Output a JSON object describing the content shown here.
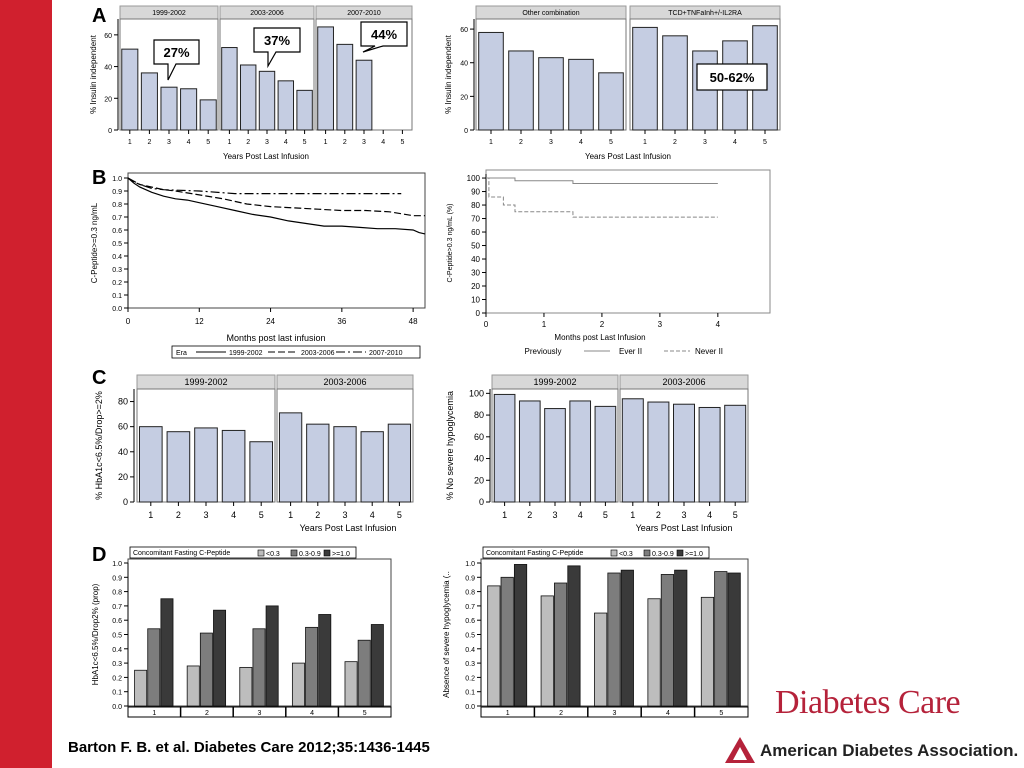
{
  "citation": "Barton F. B. et al. Diabetes Care 2012;35:1436-1445",
  "journal": "Diabetes Care",
  "association": "American Diabetes Association.",
  "colors": {
    "side_bar": "#d0202e",
    "bar_fill": "#c5cde2",
    "strip": "#d8d8d8",
    "grey_light": "#bdbdbd",
    "grey_mid": "#7d7d7d",
    "grey_dark": "#3a3a3a",
    "brand": "#b5223a"
  },
  "chart_data": [
    {
      "id": "A1",
      "panel_letter": "A",
      "type": "bar",
      "ylabel": "% Insulin independent",
      "xlabel": "Years Post Last Infusion",
      "ylim": [
        0,
        70
      ],
      "yticks": [
        0,
        20,
        40,
        60
      ],
      "facets": [
        {
          "title": "1999-2002",
          "categories": [
            "1",
            "2",
            "3",
            "4",
            "5"
          ],
          "values": [
            51,
            36,
            27,
            26,
            19
          ]
        },
        {
          "title": "2003-2006",
          "categories": [
            "1",
            "2",
            "3",
            "4",
            "5"
          ],
          "values": [
            52,
            41,
            37,
            31,
            25
          ]
        },
        {
          "title": "2007-2010",
          "categories": [
            "1",
            "2",
            "3",
            "4",
            "5"
          ],
          "values": [
            65,
            54,
            44,
            null,
            null
          ]
        }
      ],
      "annotations": [
        "27%",
        "37%",
        "44%"
      ]
    },
    {
      "id": "A2",
      "type": "bar",
      "ylabel": "% Insulin independent",
      "xlabel": "Years Post Last Infusion",
      "ylim": [
        0,
        66
      ],
      "yticks": [
        0,
        20,
        40,
        60
      ],
      "facets": [
        {
          "title": "Other combination",
          "categories": [
            "1",
            "2",
            "3",
            "4",
            "5"
          ],
          "values": [
            58,
            47,
            43,
            42,
            34
          ]
        },
        {
          "title": "TCD+TNFaInh+/-IL2RA",
          "categories": [
            "1",
            "2",
            "3",
            "4",
            "5"
          ],
          "values": [
            61,
            56,
            47,
            53,
            62
          ]
        }
      ],
      "annotations": [
        "50-62%"
      ]
    },
    {
      "id": "B1",
      "panel_letter": "B",
      "type": "line",
      "ylabel": "C-Peptide>=0.3 ng/mL",
      "xlabel": "Months post last infusion",
      "xlim": [
        0,
        50
      ],
      "ylim": [
        0,
        1.0
      ],
      "xticks": [
        0,
        12,
        24,
        36,
        48
      ],
      "yticks": [
        0.0,
        0.1,
        0.2,
        0.3,
        0.4,
        0.5,
        0.6,
        0.7,
        0.8,
        0.9,
        1.0
      ],
      "legend_title": "Era",
      "series": [
        {
          "name": "1999-2002",
          "style": "solid",
          "x": [
            0,
            1,
            2,
            3,
            4,
            6,
            8,
            10,
            12,
            15,
            18,
            21,
            24,
            27,
            30,
            33,
            36,
            39,
            42,
            45,
            48,
            49,
            50
          ],
          "y": [
            1.0,
            0.96,
            0.93,
            0.91,
            0.89,
            0.86,
            0.84,
            0.83,
            0.81,
            0.78,
            0.75,
            0.72,
            0.7,
            0.67,
            0.65,
            0.63,
            0.63,
            0.62,
            0.61,
            0.61,
            0.6,
            0.58,
            0.57
          ]
        },
        {
          "name": "2003-2006",
          "style": "dash",
          "x": [
            0,
            1,
            2,
            4,
            6,
            8,
            12,
            16,
            20,
            24,
            28,
            32,
            36,
            40,
            44,
            48,
            50
          ],
          "y": [
            1.0,
            0.97,
            0.95,
            0.93,
            0.91,
            0.9,
            0.87,
            0.84,
            0.8,
            0.78,
            0.77,
            0.76,
            0.75,
            0.75,
            0.74,
            0.71,
            0.71
          ]
        },
        {
          "name": "2007-2010",
          "style": "dashdot",
          "x": [
            0,
            2,
            4,
            6,
            12,
            18,
            24,
            30,
            36,
            42,
            46
          ],
          "y": [
            1.0,
            0.95,
            0.92,
            0.91,
            0.9,
            0.88,
            0.88,
            0.88,
            0.88,
            0.88,
            0.88
          ]
        }
      ]
    },
    {
      "id": "B2",
      "type": "line",
      "ylabel": "C-Peptide>0.3 ng/mL (%)",
      "xlabel": "Months post Last Infusion",
      "xlim": [
        0,
        4.9
      ],
      "ylim": [
        0,
        103
      ],
      "xticks": [
        0,
        1,
        2,
        3,
        4
      ],
      "yticks": [
        0,
        10,
        20,
        30,
        40,
        50,
        60,
        70,
        80,
        90,
        100
      ],
      "legend_title": "Previously",
      "series": [
        {
          "name": "Ever II",
          "style": "solid",
          "x": [
            0,
            0.5,
            0.5,
            1.5,
            1.5,
            4.0
          ],
          "y": [
            100,
            100,
            98,
            98,
            96,
            96
          ]
        },
        {
          "name": "Never II",
          "style": "dash",
          "x": [
            0,
            0.05,
            0.05,
            0.3,
            0.3,
            0.5,
            0.5,
            1.5,
            1.5,
            4.0
          ],
          "y": [
            100,
            100,
            86,
            86,
            80,
            80,
            75,
            75,
            71,
            71
          ]
        }
      ]
    },
    {
      "id": "C1",
      "panel_letter": "C",
      "type": "bar",
      "ylabel": "% HbA1c<6.5%/Drop>=2%",
      "xlabel": "Years Post Last Infusion",
      "ylim": [
        0,
        90
      ],
      "yticks": [
        0,
        20,
        40,
        60,
        80
      ],
      "facets": [
        {
          "title": "1999-2002",
          "categories": [
            "1",
            "2",
            "3",
            "4",
            "5"
          ],
          "values": [
            60,
            56,
            59,
            57,
            48
          ]
        },
        {
          "title": "2003-2006",
          "categories": [
            "1",
            "2",
            "3",
            "4",
            "5"
          ],
          "values": [
            71,
            62,
            60,
            56,
            62
          ]
        }
      ]
    },
    {
      "id": "C2",
      "type": "bar",
      "ylabel": "% No severe hypoglycemia",
      "xlabel": "Years Post Last Infusion",
      "ylim": [
        0,
        104
      ],
      "yticks": [
        0,
        20,
        40,
        60,
        80,
        100
      ],
      "facets": [
        {
          "title": "1999-2002",
          "categories": [
            "1",
            "2",
            "3",
            "4",
            "5"
          ],
          "values": [
            99,
            93,
            86,
            93,
            88
          ]
        },
        {
          "title": "2003-2006",
          "categories": [
            "1",
            "2",
            "3",
            "4",
            "5"
          ],
          "values": [
            95,
            92,
            90,
            87,
            89
          ]
        }
      ]
    },
    {
      "id": "D1",
      "panel_letter": "D",
      "type": "bar",
      "ylabel": "HbA1c<6.5%/Drop2% (prop)",
      "ylim": [
        0,
        1.0
      ],
      "yticks": [
        0.0,
        0.1,
        0.2,
        0.3,
        0.4,
        0.5,
        0.6,
        0.7,
        0.8,
        0.9,
        1.0
      ],
      "categories": [
        "1",
        "2",
        "3",
        "4",
        "5"
      ],
      "legend_title": "Concomitant Fasting C-Peptide",
      "series": [
        {
          "name": "<0.3",
          "values": [
            0.25,
            0.28,
            0.27,
            0.3,
            0.31
          ]
        },
        {
          "name": "0.3-0.9",
          "values": [
            0.54,
            0.51,
            0.54,
            0.55,
            0.46
          ]
        },
        {
          "name": ">=1.0",
          "values": [
            0.75,
            0.67,
            0.7,
            0.64,
            0.57
          ]
        }
      ]
    },
    {
      "id": "D2",
      "type": "bar",
      "ylabel": "Absence of severe hypoglycemia (..",
      "ylim": [
        0,
        1.0
      ],
      "yticks": [
        0.0,
        0.1,
        0.2,
        0.3,
        0.4,
        0.5,
        0.6,
        0.7,
        0.8,
        0.9,
        1.0
      ],
      "categories": [
        "1",
        "2",
        "3",
        "4",
        "5"
      ],
      "legend_title": "Concomitant Fasting C-Peptide",
      "series": [
        {
          "name": "<0.3",
          "values": [
            0.84,
            0.77,
            0.65,
            0.75,
            0.76
          ]
        },
        {
          "name": "0.3-0.9",
          "values": [
            0.9,
            0.86,
            0.93,
            0.92,
            0.94
          ]
        },
        {
          "name": ">=1.0",
          "values": [
            0.99,
            0.98,
            0.95,
            0.95,
            0.93
          ]
        }
      ]
    }
  ]
}
